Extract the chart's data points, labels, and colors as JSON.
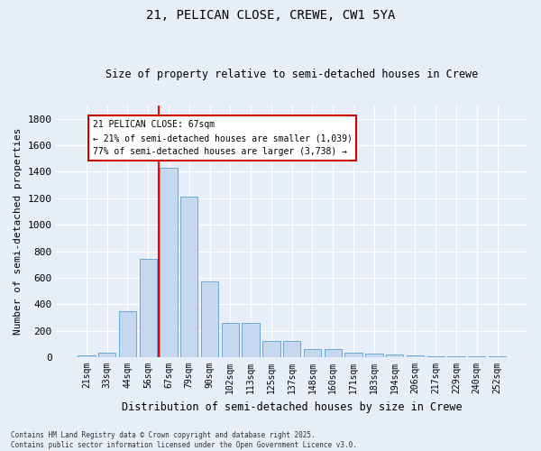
{
  "title1": "21, PELICAN CLOSE, CREWE, CW1 5YA",
  "title2": "Size of property relative to semi-detached houses in Crewe",
  "xlabel": "Distribution of semi-detached houses by size in Crewe",
  "ylabel": "Number of semi-detached properties",
  "footer1": "Contains HM Land Registry data © Crown copyright and database right 2025.",
  "footer2": "Contains public sector information licensed under the Open Government Licence v3.0.",
  "categories": [
    "21sqm",
    "33sqm",
    "44sqm",
    "56sqm",
    "67sqm",
    "79sqm",
    "90sqm",
    "102sqm",
    "113sqm",
    "125sqm",
    "137sqm",
    "148sqm",
    "160sqm",
    "171sqm",
    "183sqm",
    "194sqm",
    "206sqm",
    "217sqm",
    "229sqm",
    "240sqm",
    "252sqm"
  ],
  "values": [
    15,
    35,
    345,
    740,
    1430,
    1215,
    575,
    260,
    260,
    125,
    125,
    60,
    60,
    35,
    30,
    20,
    15,
    10,
    5,
    5,
    10
  ],
  "bar_color": "#c5d8f0",
  "bar_edge_color": "#6aaad4",
  "red_line_x": 3.5,
  "annotation_title": "21 PELICAN CLOSE: 67sqm",
  "annotation_line1": "← 21% of semi-detached houses are smaller (1,039)",
  "annotation_line2": "77% of semi-detached houses are larger (3,738) →",
  "annotation_box_facecolor": "#ffffff",
  "annotation_box_edgecolor": "#cc0000",
  "ylim_max": 1900,
  "yticks": [
    0,
    200,
    400,
    600,
    800,
    1000,
    1200,
    1400,
    1600,
    1800
  ],
  "background_color": "#e8eef8",
  "grid_color": "#ffffff"
}
